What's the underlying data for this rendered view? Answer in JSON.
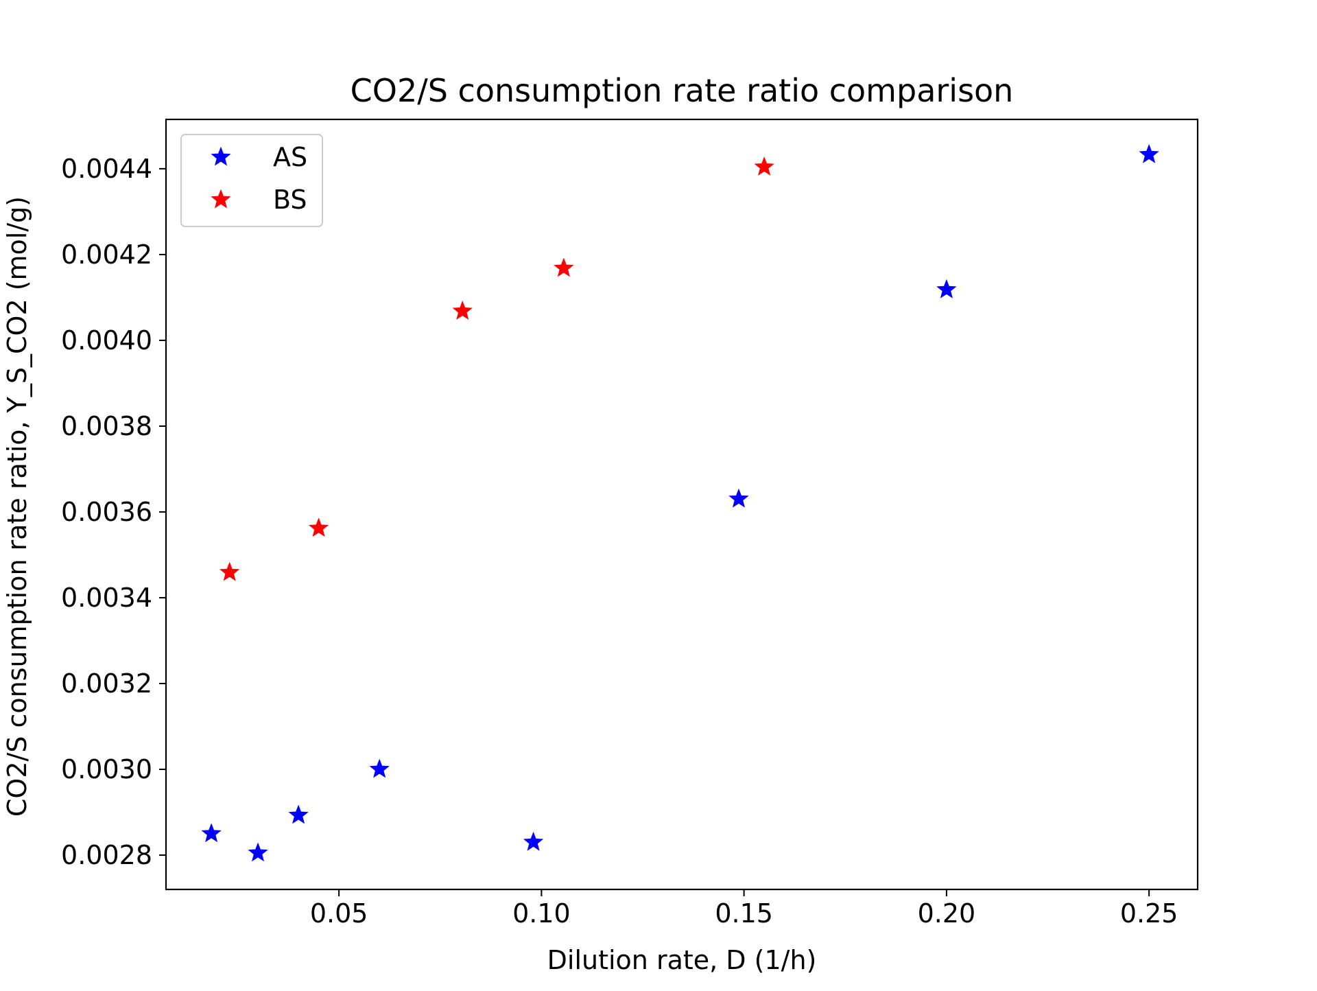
{
  "chart_data": {
    "type": "scatter",
    "title": "CO2/S consumption rate ratio comparison",
    "xlabel": "Dilution rate, D (1/h)",
    "ylabel": "CO2/S consumption rate ratio, Y_S_CO2 (mol/g)",
    "xlim": [
      0.0073,
      0.262
    ],
    "ylim": [
      0.00272,
      0.004515
    ],
    "xticks": [
      {
        "value": 0.05,
        "label": "0.05"
      },
      {
        "value": 0.1,
        "label": "0.10"
      },
      {
        "value": 0.15,
        "label": "0.15"
      },
      {
        "value": 0.2,
        "label": "0.20"
      },
      {
        "value": 0.25,
        "label": "0.25"
      }
    ],
    "yticks": [
      {
        "value": 0.0028,
        "label": "0.0028"
      },
      {
        "value": 0.003,
        "label": "0.0030"
      },
      {
        "value": 0.0032,
        "label": "0.0032"
      },
      {
        "value": 0.0034,
        "label": "0.0034"
      },
      {
        "value": 0.0036,
        "label": "0.0036"
      },
      {
        "value": 0.0038,
        "label": "0.0038"
      },
      {
        "value": 0.004,
        "label": "0.0040"
      },
      {
        "value": 0.0042,
        "label": "0.0042"
      },
      {
        "value": 0.0044,
        "label": "0.0044"
      }
    ],
    "grid": false,
    "legend_position": "upper-left",
    "series": [
      {
        "name": "AS",
        "color": "#0000ff",
        "marker": "star",
        "points": [
          {
            "x": 0.0185,
            "y": 0.00285
          },
          {
            "x": 0.03,
            "y": 0.002805
          },
          {
            "x": 0.04,
            "y": 0.002893
          },
          {
            "x": 0.06,
            "y": 0.003
          },
          {
            "x": 0.098,
            "y": 0.00283
          },
          {
            "x": 0.1487,
            "y": 0.00363
          },
          {
            "x": 0.2,
            "y": 0.004118
          },
          {
            "x": 0.25,
            "y": 0.004433
          }
        ]
      },
      {
        "name": "BS",
        "color": "#ff0000",
        "marker": "star",
        "points": [
          {
            "x": 0.023,
            "y": 0.003459
          },
          {
            "x": 0.045,
            "y": 0.003562
          },
          {
            "x": 0.0805,
            "y": 0.004068
          },
          {
            "x": 0.1055,
            "y": 0.004168
          },
          {
            "x": 0.155,
            "y": 0.004404
          }
        ]
      }
    ]
  }
}
